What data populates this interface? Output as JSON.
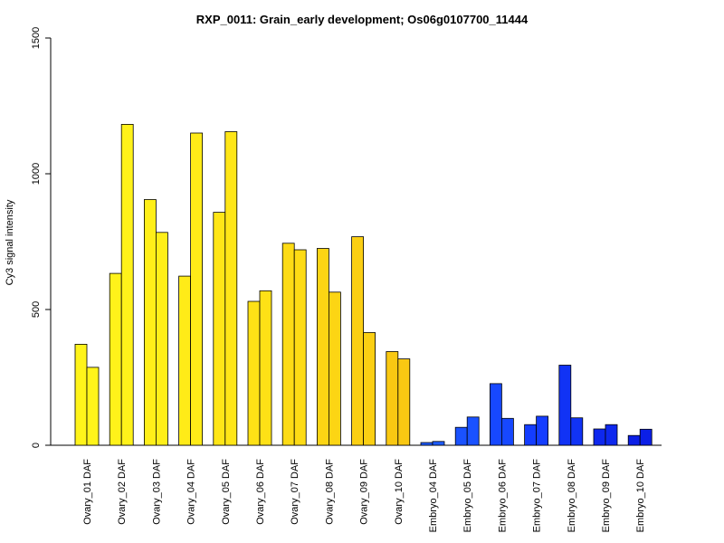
{
  "chart_data": {
    "type": "bar",
    "title": "RXP_0011: Grain_early development; Os06g0107700_11444",
    "xlabel": "",
    "ylabel": "Cy3 signal intensity",
    "ylim": [
      0,
      1500
    ],
    "yticks": [
      0,
      500,
      1000,
      1500
    ],
    "grid": false,
    "categories": [
      "Ovary_01 DAF",
      "Ovary_02 DAF",
      "Ovary_03 DAF",
      "Ovary_04 DAF",
      "Ovary_05 DAF",
      "Ovary_06 DAF",
      "Ovary_07 DAF",
      "Ovary_08 DAF",
      "Ovary_09 DAF",
      "Ovary_10 DAF",
      "Embryo_04 DAF",
      "Embryo_05 DAF",
      "Embryo_06 DAF",
      "Embryo_07 DAF",
      "Embryo_08 DAF",
      "Embryo_09 DAF",
      "Embryo_10 DAF"
    ],
    "series": [
      {
        "values": [
          372,
          633,
          905,
          623,
          858,
          530,
          744,
          725,
          768,
          345,
          10,
          66,
          227,
          76,
          295,
          60,
          36
        ]
      },
      {
        "values": [
          287,
          1182,
          784,
          1150,
          1155,
          569,
          720,
          564,
          415,
          318,
          14,
          104,
          99,
          107,
          101,
          76,
          59
        ]
      }
    ],
    "colors": [
      "#fff41a",
      "#fff21a",
      "#ffef19",
      "#ffeb18",
      "#ffe617",
      "#fee116",
      "#fddb15",
      "#fcd514",
      "#fbcf13",
      "#f9c812",
      "#1e5cff",
      "#1a52ff",
      "#1748ff",
      "#143dff",
      "#1133f5",
      "#0e28ee",
      "#0b1fe6"
    ]
  }
}
